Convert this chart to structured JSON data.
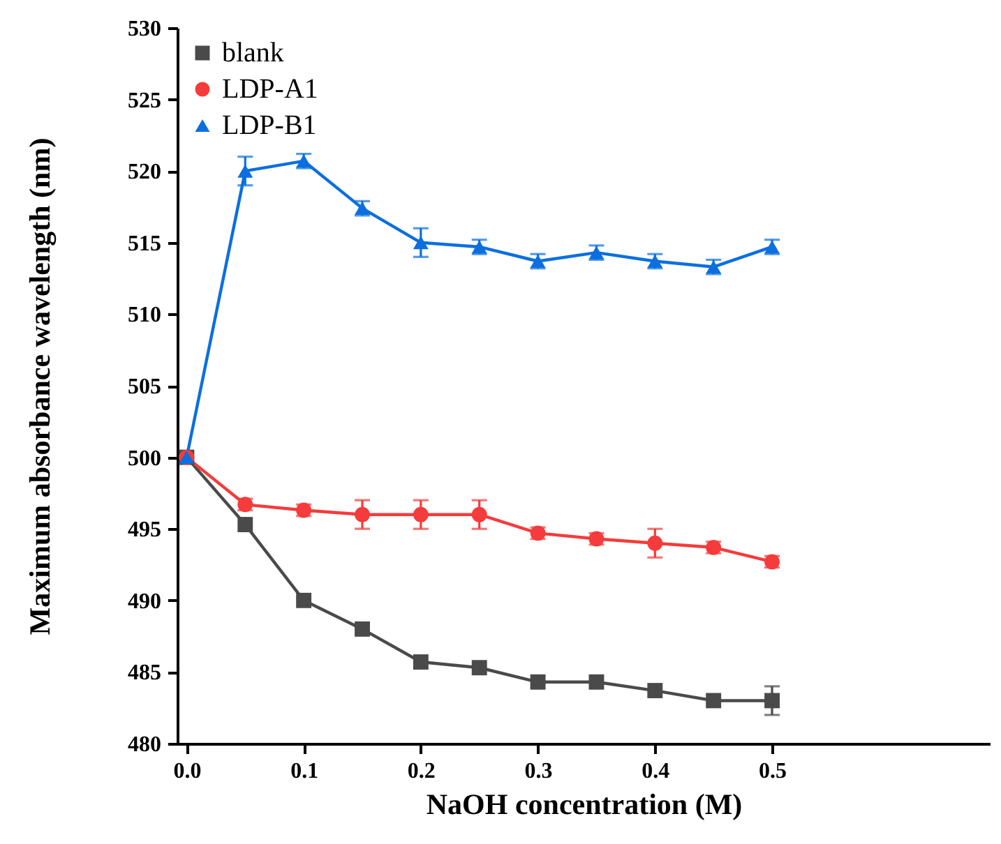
{
  "chart_data": {
    "type": "line",
    "xlabel": "NaOH concentration (M)",
    "ylabel": "Maximum absorbance wavelength (nm)",
    "x": [
      0,
      0.05,
      0.1,
      0.15,
      0.2,
      0.25,
      0.3,
      0.35,
      0.4,
      0.45,
      0.5
    ],
    "xlim": [
      -0.008,
      0.686
    ],
    "xticks": [
      {
        "value": 0,
        "label": "0.0"
      },
      0.1,
      0.2,
      0.3,
      0.4,
      0.5
    ],
    "ylim": [
      480,
      530
    ],
    "yticks": [
      480,
      485,
      490,
      495,
      500,
      505,
      510,
      515,
      520,
      525,
      530
    ],
    "grid": false,
    "legend": "top left",
    "series": [
      {
        "name": "blank",
        "color": "#4a4a4a",
        "marker": "square",
        "values": [
          500,
          495.3,
          490,
          488,
          485.7,
          485.3,
          484.3,
          484.3,
          483.7,
          483,
          483
        ],
        "errors": [
          null,
          null,
          null,
          null,
          null,
          null,
          null,
          null,
          null,
          null,
          1
        ]
      },
      {
        "name": "LDP-A1",
        "color": "#f53b3b",
        "marker": "circle",
        "values": [
          500,
          496.7,
          496.3,
          496,
          496,
          496,
          494.7,
          494.3,
          494,
          493.7,
          492.7
        ],
        "errors": [
          null,
          0.4,
          0.4,
          1,
          1,
          1,
          0.4,
          0.4,
          1,
          0.4,
          0.4
        ]
      },
      {
        "name": "LDP-B1",
        "color": "#0b6fe0",
        "marker": "triangle",
        "values": [
          500,
          520,
          520.7,
          517.4,
          515,
          514.7,
          513.7,
          514.3,
          513.7,
          513.3,
          514.7
        ],
        "errors": [
          null,
          1,
          0.5,
          0.5,
          1,
          0.5,
          0.5,
          0.5,
          0.5,
          0.5,
          0.5
        ]
      }
    ]
  }
}
